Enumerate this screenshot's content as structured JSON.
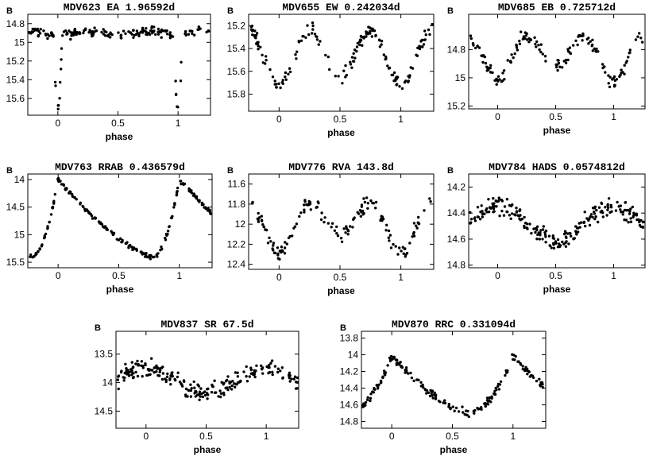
{
  "figure": {
    "panel_count": 8
  },
  "chart_data": [
    {
      "type": "scatter",
      "title": "MDV623   EA   1.96592d",
      "xlabel": "phase",
      "ylabel": "B",
      "y_inverted": true,
      "xlim": [
        -0.25,
        1.27
      ],
      "ylim": [
        14.7,
        15.78
      ],
      "xticks": [
        0,
        0.5,
        1
      ],
      "xtick_labels": [
        "0",
        "0.5",
        "1"
      ],
      "yticks": [
        14.8,
        15,
        15.2,
        15.4,
        15.6
      ],
      "ytick_labels": [
        "14.8",
        "15",
        "15.2",
        "15.4",
        "15.6"
      ],
      "curve": {
        "shape": "eclipse",
        "baseline": 14.9,
        "wave_amplitude": 0.02,
        "primary_depth": 0.78,
        "primary_width": 0.035,
        "secondary_depth": 0.0,
        "secondary_width": 0.03,
        "scatter": 0.05,
        "points": 190
      }
    },
    {
      "type": "scatter",
      "title": "MDV655   EW   0.242034d",
      "xlabel": "phase",
      "ylabel": "B",
      "y_inverted": true,
      "xlim": [
        -0.25,
        1.27
      ],
      "ylim": [
        15.1,
        15.95
      ],
      "xticks": [
        0,
        0.5,
        1
      ],
      "xtick_labels": [
        "0",
        "0.5",
        "1"
      ],
      "yticks": [
        15.2,
        15.4,
        15.6,
        15.8
      ],
      "ytick_labels": [
        "15.2",
        "15.4",
        "15.6",
        "15.8"
      ],
      "curve": {
        "shape": "ew",
        "maximum": 15.24,
        "primary_minimum": 15.72,
        "secondary_minimum": 15.64,
        "scatter": 0.06,
        "points": 170
      }
    },
    {
      "type": "scatter",
      "title": "MDV685   EB   0.725712d",
      "xlabel": "phase",
      "ylabel": "B",
      "y_inverted": true,
      "xlim": [
        -0.25,
        1.27
      ],
      "ylim": [
        14.55,
        15.22
      ],
      "xticks": [
        0,
        0.5,
        1
      ],
      "xtick_labels": [
        "0",
        "0.5",
        "1"
      ],
      "yticks": [
        14.8,
        15,
        15.2
      ],
      "ytick_labels": [
        "14.8",
        "15",
        "15.2"
      ],
      "curve": {
        "shape": "ew",
        "maximum": 14.7,
        "primary_minimum": 15.02,
        "secondary_minimum": 14.93,
        "scatter": 0.05,
        "points": 150
      }
    },
    {
      "type": "scatter",
      "title": "MDV763   RRAB   0.436579d",
      "xlabel": "phase",
      "ylabel": "B",
      "y_inverted": true,
      "xlim": [
        -0.25,
        1.27
      ],
      "ylim": [
        13.9,
        15.6
      ],
      "xticks": [
        0,
        0.5,
        1
      ],
      "xtick_labels": [
        "0",
        "0.5",
        "1"
      ],
      "yticks": [
        14,
        14.5,
        15,
        15.5
      ],
      "ytick_labels": [
        "14",
        "14.5",
        "15",
        "15.5"
      ],
      "curve": {
        "shape": "rr",
        "maximum": 14.0,
        "minimum": 15.4,
        "descent_end_phase": 0.78,
        "scatter": 0.04,
        "points": 210
      }
    },
    {
      "type": "scatter",
      "title": "MDV776   RVA   143.8d",
      "xlabel": "phase",
      "ylabel": "B",
      "y_inverted": true,
      "xlim": [
        -0.25,
        1.27
      ],
      "ylim": [
        11.5,
        12.45
      ],
      "xticks": [
        0,
        0.5,
        1
      ],
      "xtick_labels": [
        "0",
        "0.5",
        "1"
      ],
      "yticks": [
        11.6,
        11.8,
        12,
        12.2,
        12.4
      ],
      "ytick_labels": [
        "11.6",
        "11.8",
        "12",
        "12.2",
        "12.4"
      ],
      "curve": {
        "shape": "ew",
        "maximum": 11.78,
        "primary_minimum": 12.28,
        "secondary_minimum": 12.1,
        "scatter": 0.07,
        "points": 150
      }
    },
    {
      "type": "scatter",
      "title": "MDV784   HADS   0.0574812d",
      "xlabel": "phase",
      "ylabel": "B",
      "y_inverted": true,
      "xlim": [
        -0.25,
        1.27
      ],
      "ylim": [
        14.1,
        14.82
      ],
      "xticks": [
        0,
        0.5,
        1
      ],
      "xtick_labels": [
        "0",
        "0.5",
        "1"
      ],
      "yticks": [
        14.2,
        14.4,
        14.6,
        14.8
      ],
      "ytick_labels": [
        "14.2",
        "14.4",
        "14.6",
        "14.8"
      ],
      "curve": {
        "shape": "sine",
        "mean": 14.48,
        "amplitude": 0.13,
        "scatter": 0.07,
        "points": 230
      }
    },
    {
      "type": "scatter",
      "title": "MDV837   SR   67.5d",
      "xlabel": "phase",
      "ylabel": "B",
      "y_inverted": true,
      "xlim": [
        -0.25,
        1.27
      ],
      "ylim": [
        13.1,
        14.8
      ],
      "xticks": [
        0,
        0.5,
        1
      ],
      "xtick_labels": [
        "0",
        "0.5",
        "1"
      ],
      "yticks": [
        13.5,
        14,
        14.5
      ],
      "ytick_labels": [
        "13.5",
        "14",
        "14.5"
      ],
      "curve": {
        "shape": "sine",
        "mean": 13.95,
        "amplitude": 0.2,
        "scatter": 0.15,
        "points": 230
      }
    },
    {
      "type": "scatter",
      "title": "MDV870   RRC   0.331094d",
      "xlabel": "phase",
      "ylabel": "B",
      "y_inverted": true,
      "xlim": [
        -0.25,
        1.27
      ],
      "ylim": [
        13.72,
        14.88
      ],
      "xticks": [
        0,
        0.5,
        1
      ],
      "xtick_labels": [
        "0",
        "0.5",
        "1"
      ],
      "yticks": [
        13.8,
        14,
        14.2,
        14.4,
        14.6,
        14.8
      ],
      "ytick_labels": [
        "13.8",
        "14",
        "14.2",
        "14.4",
        "14.6",
        "14.8"
      ],
      "curve": {
        "shape": "rr",
        "maximum": 14.02,
        "minimum": 14.7,
        "descent_end_phase": 0.62,
        "scatter": 0.05,
        "points": 190
      }
    }
  ]
}
